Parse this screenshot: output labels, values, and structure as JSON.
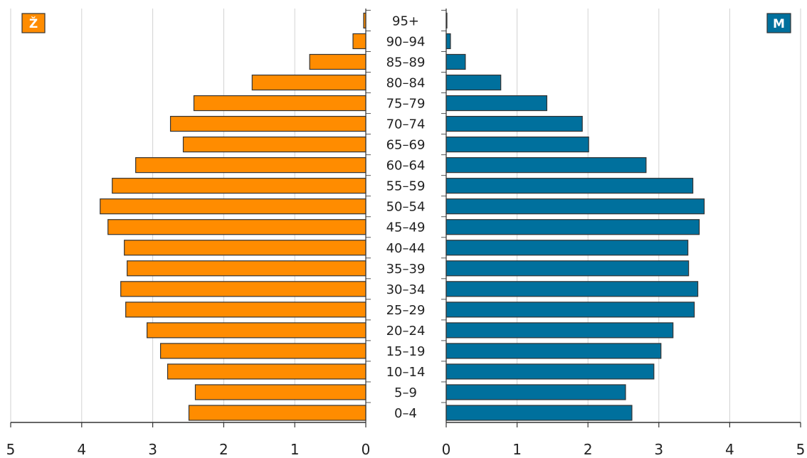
{
  "chart_data": {
    "type": "bar",
    "orientation": "horizontal-population-pyramid",
    "categories": [
      "0–4",
      "5–9",
      "10–14",
      "15–19",
      "20–24",
      "25–29",
      "30–34",
      "35–39",
      "40–44",
      "45–49",
      "50–54",
      "55–59",
      "60–64",
      "65–69",
      "70–74",
      "75–79",
      "80–84",
      "85–89",
      "90–94",
      "95+"
    ],
    "series": [
      {
        "name": "Ž",
        "side": "left",
        "color": "#FF8C00",
        "values": [
          2.49,
          2.4,
          2.79,
          2.89,
          3.08,
          3.38,
          3.45,
          3.36,
          3.4,
          3.63,
          3.74,
          3.57,
          3.24,
          2.57,
          2.75,
          2.42,
          1.6,
          0.79,
          0.18,
          0.03
        ]
      },
      {
        "name": "M",
        "side": "right",
        "color": "#00709D",
        "values": [
          2.62,
          2.53,
          2.93,
          3.03,
          3.2,
          3.5,
          3.55,
          3.42,
          3.41,
          3.57,
          3.64,
          3.48,
          2.82,
          2.01,
          1.92,
          1.42,
          0.77,
          0.27,
          0.06,
          0.01
        ]
      }
    ],
    "xlim": [
      0,
      5
    ],
    "x_ticks_left": [
      "5",
      "4",
      "3",
      "2",
      "1",
      "0"
    ],
    "x_ticks_right": [
      "0",
      "1",
      "2",
      "3",
      "4",
      "5"
    ],
    "grid": true,
    "title": "",
    "xlabel": "",
    "ylabel": ""
  },
  "legend": {
    "female_badge": "Ž",
    "male_badge": "M"
  }
}
